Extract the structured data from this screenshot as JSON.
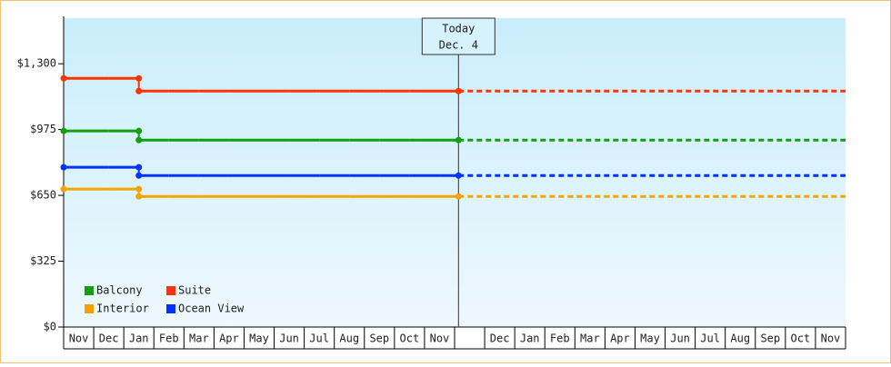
{
  "chart_data": {
    "type": "step",
    "annotation": [
      "Today",
      "Dec. 4"
    ],
    "categories": [
      "Nov",
      "Dec",
      "Jan",
      "Feb",
      "Mar",
      "Apr",
      "May",
      "Jun",
      "Jul",
      "Aug",
      "Sep",
      "Oct",
      "Nov",
      "Dec",
      "Jan",
      "Feb",
      "Mar",
      "Apr",
      "May",
      "Jun",
      "Jul",
      "Aug",
      "Sep",
      "Oct",
      "Nov"
    ],
    "ylim": [
      0,
      1525
    ],
    "yticks": [
      {
        "value": 0,
        "label": "$0"
      },
      {
        "value": 325,
        "label": "$325"
      },
      {
        "value": 650,
        "label": "$650"
      },
      {
        "value": 975,
        "label": "$975"
      },
      {
        "value": 1300,
        "label": "$1,300"
      }
    ],
    "series": [
      {
        "name": "Balcony",
        "color": "#11a011",
        "values": [
          968,
          968,
          968,
          923,
          923,
          923,
          923,
          923,
          923,
          923,
          923,
          923,
          923,
          923,
          null,
          null,
          null,
          null,
          null,
          null,
          null,
          null,
          null,
          null,
          null
        ]
      },
      {
        "name": "Suite",
        "color": "#ff3300",
        "values": [
          1228,
          1228,
          1228,
          1165,
          1165,
          1165,
          1165,
          1165,
          1165,
          1165,
          1165,
          1165,
          1165,
          1165,
          null,
          null,
          null,
          null,
          null,
          null,
          null,
          null,
          null,
          null,
          null
        ]
      },
      {
        "name": "Interior",
        "color": "#f5a300",
        "values": [
          681,
          681,
          681,
          645,
          645,
          645,
          645,
          645,
          645,
          645,
          645,
          645,
          645,
          645,
          null,
          null,
          null,
          null,
          null,
          null,
          null,
          null,
          null,
          null,
          null
        ]
      },
      {
        "name": "Ocean View",
        "color": "#0033ff",
        "values": [
          789,
          789,
          789,
          748,
          748,
          748,
          748,
          748,
          748,
          748,
          748,
          748,
          748,
          748,
          null,
          null,
          null,
          null,
          null,
          null,
          null,
          null,
          null,
          null,
          null
        ]
      }
    ]
  }
}
